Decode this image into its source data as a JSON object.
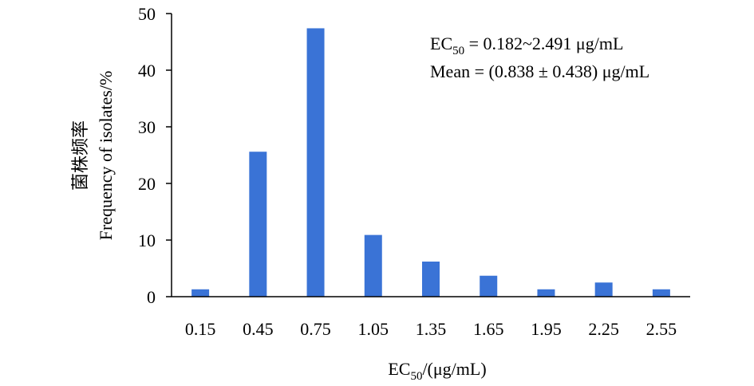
{
  "chart_data": {
    "type": "bar",
    "categories": [
      "0.15",
      "0.45",
      "0.75",
      "1.05",
      "1.35",
      "1.65",
      "1.95",
      "2.25",
      "2.55"
    ],
    "values": [
      1.3,
      25.6,
      47.4,
      10.9,
      6.2,
      3.7,
      1.3,
      2.5,
      1.3
    ],
    "ylim": [
      0,
      50
    ],
    "yticks": [
      "0",
      "10",
      "20",
      "30",
      "40",
      "50"
    ],
    "xlabel": {
      "main": "EC",
      "sub": "50",
      "rest": "/(μg/mL)"
    },
    "ylabel": {
      "line1": "菌株频率",
      "line2": "Frequency of isolates/%"
    },
    "annotations": {
      "ec_range": {
        "main": "EC",
        "sub": "50",
        "rest": " = 0.182~2.491 μg/mL"
      },
      "mean": "Mean = (0.838 ± 0.438) μg/mL"
    },
    "bar_color": "#3a73d6",
    "grid": false,
    "legend": "none"
  }
}
